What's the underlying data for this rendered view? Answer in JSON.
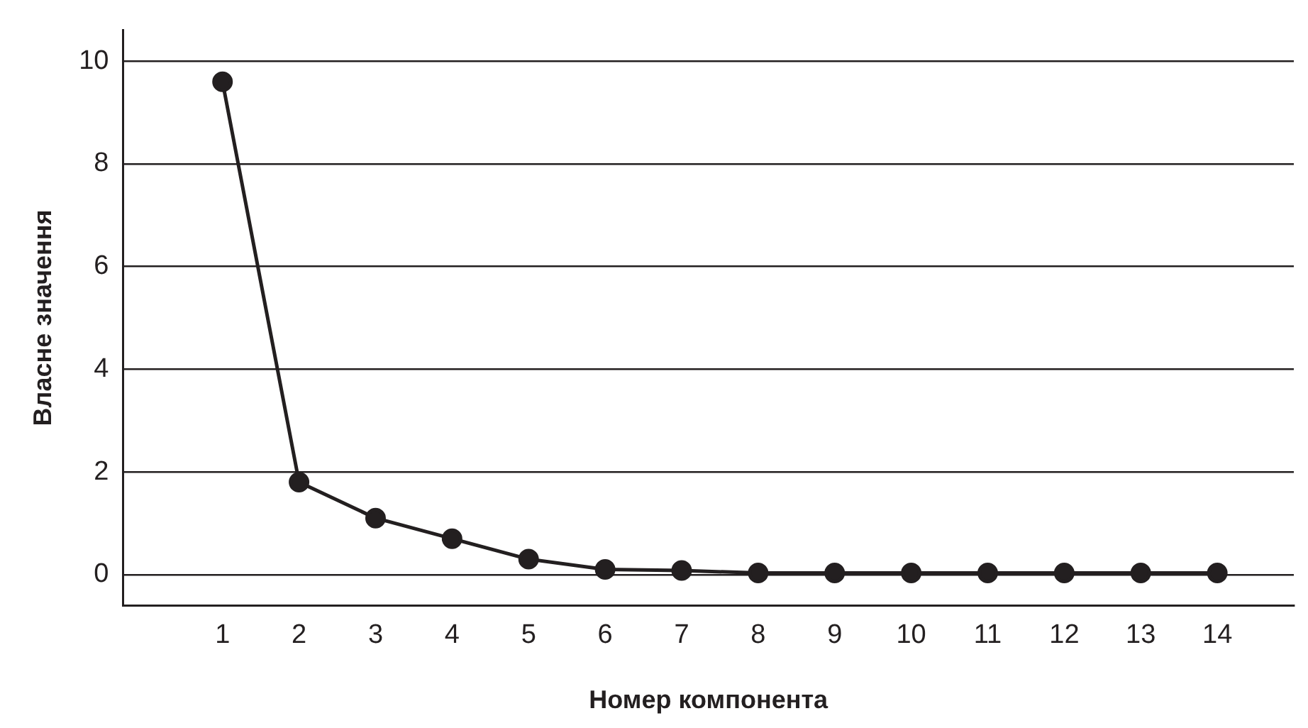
{
  "chart_data": {
    "type": "line",
    "xlabel": "Номер компонента",
    "ylabel": "Власне значення",
    "x": [
      1,
      2,
      3,
      4,
      5,
      6,
      7,
      8,
      9,
      10,
      11,
      12,
      13,
      14
    ],
    "series": [
      {
        "color": "#231f20",
        "values": [
          9.6,
          1.8,
          1.1,
          0.7,
          0.3,
          0.1,
          0.08,
          0.03,
          0.03,
          0.03,
          0.03,
          0.03,
          0.03,
          0.03
        ]
      }
    ],
    "xlim": [
      -0.3,
      15
    ],
    "xticks": [
      1,
      2,
      3,
      4,
      5,
      6,
      7,
      8,
      9,
      10,
      11,
      12,
      13,
      14
    ],
    "ylim": [
      -0.6,
      10.6
    ],
    "yticks": [
      0,
      2,
      4,
      6,
      8,
      10
    ],
    "grid": "y",
    "legend": false,
    "marker": "circle",
    "line_style": "solid"
  }
}
